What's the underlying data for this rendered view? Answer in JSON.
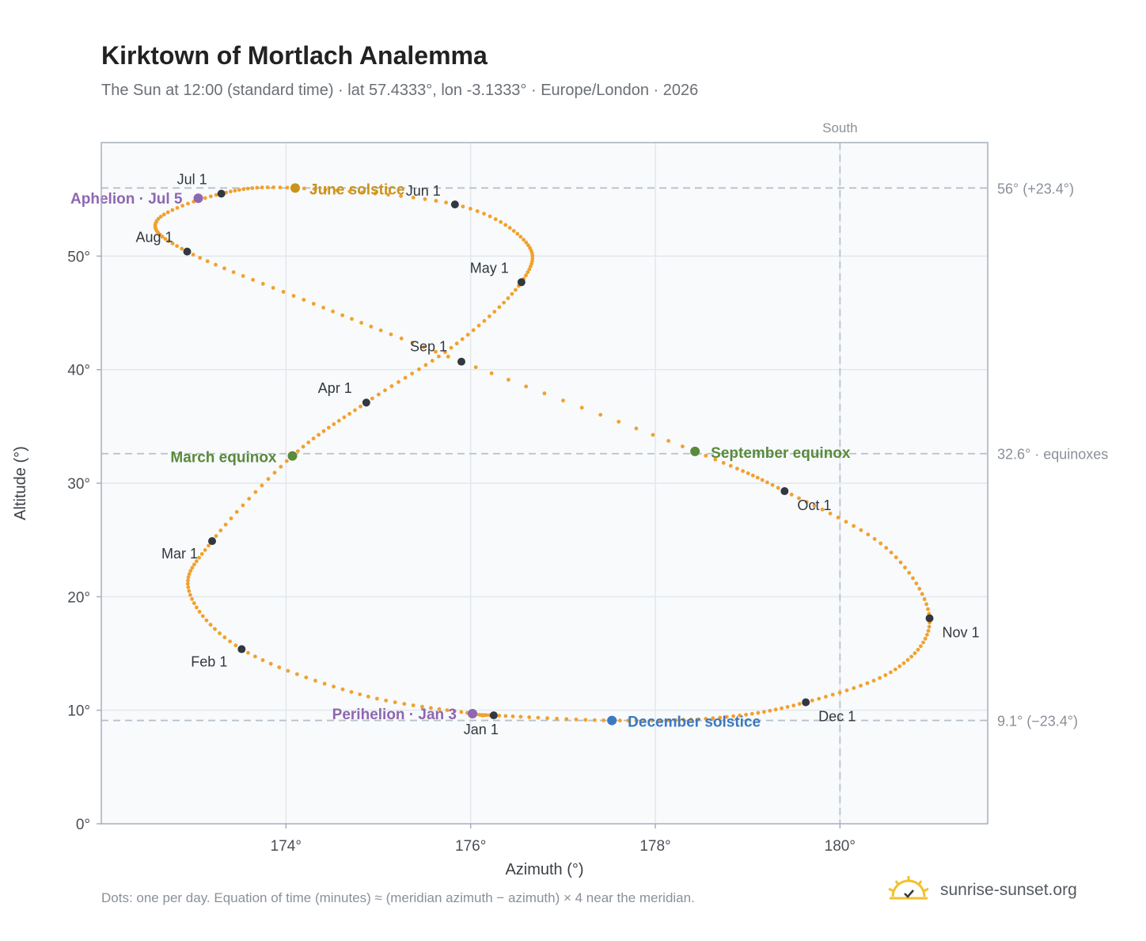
{
  "header": {
    "title": "Kirktown of Mortlach Analemma",
    "subtitle": "The Sun at 12:00 (standard time) · lat 57.4333°, lon -3.1333° · Europe/London · 2026"
  },
  "footer": {
    "note": "Dots: one per day. Equation of time (minutes) ≈ (meridian azimuth − azimuth) × 4 near the meridian.",
    "brand": "sunrise-sunset.org",
    "brand_icon": "sun-logo-icon"
  },
  "colors": {
    "curve": "#f2a12c",
    "month_dot": "#333840",
    "equinox": "#5a8a3c",
    "june_solstice": "#c8941a",
    "december_solstice": "#3b78c2",
    "apsis": "#8e67b0",
    "grid": "#e3e8ee",
    "plot_bg": "#f8fafc",
    "reference_line": "#b8c2ca"
  },
  "chart_data": {
    "type": "scatter",
    "xlabel": "Azimuth (°)",
    "ylabel": "Altitude (°)",
    "xlim": [
      172.0,
      181.6
    ],
    "ylim": [
      0,
      60
    ],
    "x_ticks": [
      {
        "value": 174,
        "label": "174°"
      },
      {
        "value": 176,
        "label": "176°"
      },
      {
        "value": 178,
        "label": "178°"
      },
      {
        "value": 180,
        "label": "180°"
      }
    ],
    "y_ticks": [
      {
        "value": 0,
        "label": "0°"
      },
      {
        "value": 10,
        "label": "10°"
      },
      {
        "value": 20,
        "label": "20°"
      },
      {
        "value": 30,
        "label": "30°"
      },
      {
        "value": 40,
        "label": "40°"
      },
      {
        "value": 50,
        "label": "50°"
      }
    ],
    "grid": true,
    "reference_lines": [
      {
        "axis": "x",
        "value": 180,
        "label": "South"
      },
      {
        "axis": "y",
        "value": 56.0,
        "label": "56° (+23.4°)"
      },
      {
        "axis": "y",
        "value": 32.6,
        "label": "32.6° · equinoxes"
      },
      {
        "axis": "y",
        "value": 9.1,
        "label": "9.1° (−23.4°)"
      }
    ],
    "month_markers": [
      {
        "label": "Jan 1",
        "azimuth": 176.25,
        "altitude": 9.55
      },
      {
        "label": "Feb 1",
        "azimuth": 173.52,
        "altitude": 15.38
      },
      {
        "label": "Mar 1",
        "azimuth": 173.2,
        "altitude": 24.9
      },
      {
        "label": "Apr 1",
        "azimuth": 174.87,
        "altitude": 37.1
      },
      {
        "label": "May 1",
        "azimuth": 176.55,
        "altitude": 47.7
      },
      {
        "label": "Jun 1",
        "azimuth": 175.83,
        "altitude": 54.55
      },
      {
        "label": "Jul 1",
        "azimuth": 173.3,
        "altitude": 55.5
      },
      {
        "label": "Aug 1",
        "azimuth": 172.93,
        "altitude": 50.4
      },
      {
        "label": "Sep 1",
        "azimuth": 175.9,
        "altitude": 40.7
      },
      {
        "label": "Oct 1",
        "azimuth": 179.4,
        "altitude": 29.3
      },
      {
        "label": "Nov 1",
        "azimuth": 180.97,
        "altitude": 18.1
      },
      {
        "label": "Dec 1",
        "azimuth": 179.63,
        "altitude": 10.7
      }
    ],
    "events": [
      {
        "label": "June solstice",
        "azimuth": 174.1,
        "altitude": 56.0,
        "color_key": "june_solstice"
      },
      {
        "label": "March equinox",
        "azimuth": 174.07,
        "altitude": 32.4,
        "color_key": "equinox"
      },
      {
        "label": "September equinox",
        "azimuth": 178.43,
        "altitude": 32.8,
        "color_key": "equinox"
      },
      {
        "label": "December solstice",
        "azimuth": 177.53,
        "altitude": 9.1,
        "color_key": "december_solstice"
      },
      {
        "label": "Aphelion · Jul 5",
        "azimuth": 173.05,
        "altitude": 55.1,
        "color_key": "apsis"
      },
      {
        "label": "Perihelion · Jan 3",
        "azimuth": 176.02,
        "altitude": 9.7,
        "color_key": "apsis"
      }
    ],
    "curve_keypoints": [
      {
        "azimuth": 176.25,
        "altitude": 9.55
      },
      {
        "azimuth": 176.02,
        "altitude": 9.7
      },
      {
        "azimuth": 174.8,
        "altitude": 11.4
      },
      {
        "azimuth": 173.52,
        "altitude": 15.38
      },
      {
        "azimuth": 172.95,
        "altitude": 20.5
      },
      {
        "azimuth": 173.2,
        "altitude": 24.9
      },
      {
        "azimuth": 174.07,
        "altitude": 32.4
      },
      {
        "azimuth": 174.87,
        "altitude": 37.1
      },
      {
        "azimuth": 175.85,
        "altitude": 42.3
      },
      {
        "azimuth": 176.55,
        "altitude": 47.7
      },
      {
        "azimuth": 176.6,
        "altitude": 51.2
      },
      {
        "azimuth": 175.83,
        "altitude": 54.55
      },
      {
        "azimuth": 174.1,
        "altitude": 56.0
      },
      {
        "azimuth": 173.3,
        "altitude": 55.5
      },
      {
        "azimuth": 172.6,
        "altitude": 53.1
      },
      {
        "azimuth": 172.93,
        "altitude": 50.4
      },
      {
        "azimuth": 174.3,
        "altitude": 45.8
      },
      {
        "azimuth": 175.9,
        "altitude": 40.7
      },
      {
        "azimuth": 178.43,
        "altitude": 32.8
      },
      {
        "azimuth": 179.4,
        "altitude": 29.3
      },
      {
        "azimuth": 180.5,
        "altitude": 24.3
      },
      {
        "azimuth": 180.97,
        "altitude": 18.1
      },
      {
        "azimuth": 180.6,
        "altitude": 13.6
      },
      {
        "azimuth": 179.63,
        "altitude": 10.7
      },
      {
        "azimuth": 178.7,
        "altitude": 9.35
      },
      {
        "azimuth": 177.53,
        "altitude": 9.1
      },
      {
        "azimuth": 176.25,
        "altitude": 9.55
      }
    ]
  }
}
